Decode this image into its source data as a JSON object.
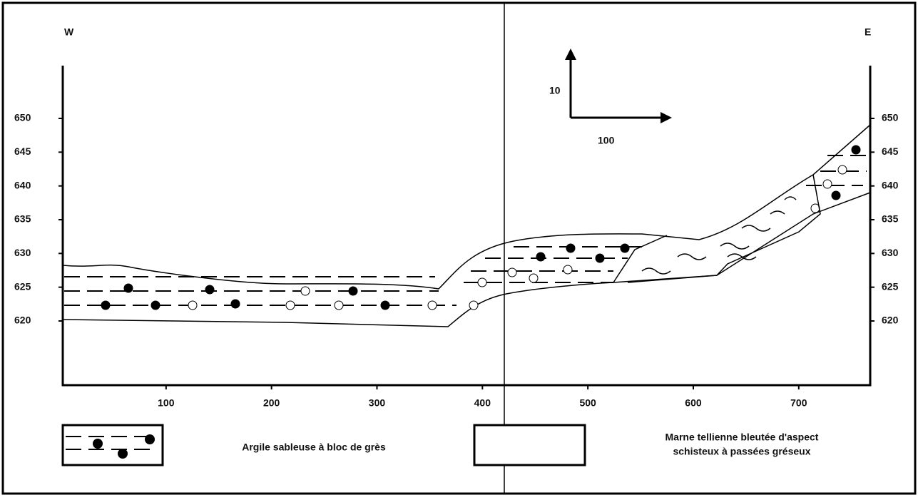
{
  "orientation": {
    "west": "W",
    "east": "E"
  },
  "elevation_ticks": [
    650,
    645,
    640,
    635,
    630,
    625,
    620
  ],
  "distance_ticks": [
    100,
    200,
    300,
    400,
    500,
    600,
    700
  ],
  "scale": {
    "vertical": 10,
    "horizontal": 100
  },
  "legend": [
    {
      "label": "Argile sableuse à bloc de grès"
    },
    {
      "label_lines": [
        "Marne tellienne bleutée d'aspect",
        "schisteux à passées gréseux"
      ]
    }
  ]
}
